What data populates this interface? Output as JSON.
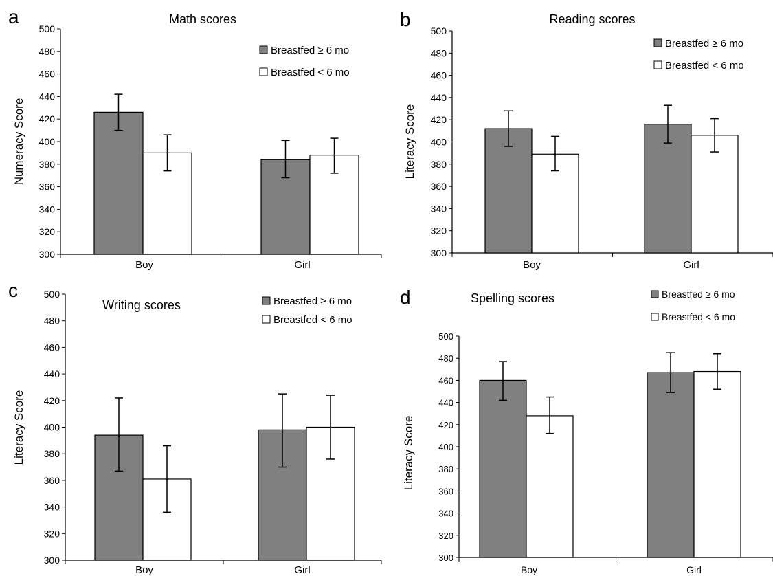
{
  "chart_data": [
    {
      "panel_letter": "a",
      "type": "bar",
      "title": "Math scores",
      "ylabel": "Numeracy Score",
      "xlabel": "",
      "categories": [
        "Boy",
        "Girl"
      ],
      "ylim": [
        300,
        500
      ],
      "yticks": [
        "300",
        "320",
        "340",
        "360",
        "380",
        "400",
        "420",
        "440",
        "460",
        "480",
        "500"
      ],
      "grid": false,
      "legend_position": "top-right",
      "series": [
        {
          "name": "Breastfed ≥ 6 mo",
          "color": "#808080",
          "values": [
            426,
            384
          ],
          "err_low": [
            410,
            368
          ],
          "err_high": [
            442,
            401
          ]
        },
        {
          "name": "Breastfed < 6 mo",
          "color": "#ffffff",
          "values": [
            390,
            388
          ],
          "err_low": [
            374,
            372
          ],
          "err_high": [
            406,
            403
          ]
        }
      ]
    },
    {
      "panel_letter": "b",
      "type": "bar",
      "title": "Reading scores",
      "ylabel": "Literacy Score",
      "xlabel": "",
      "categories": [
        "Boy",
        "Girl"
      ],
      "ylim": [
        300,
        500
      ],
      "yticks": [
        "300",
        "320",
        "340",
        "360",
        "380",
        "400",
        "420",
        "440",
        "460",
        "480",
        "500"
      ],
      "grid": false,
      "legend_position": "top-right",
      "series": [
        {
          "name": "Breastfed ≥ 6 mo",
          "color": "#808080",
          "values": [
            412,
            416
          ],
          "err_low": [
            396,
            399
          ],
          "err_high": [
            428,
            433
          ]
        },
        {
          "name": "Breastfed < 6 mo",
          "color": "#ffffff",
          "values": [
            389,
            406
          ],
          "err_low": [
            374,
            391
          ],
          "err_high": [
            405,
            421
          ]
        }
      ]
    },
    {
      "panel_letter": "c",
      "type": "bar",
      "title": "Writing scores",
      "ylabel": "Literacy Score",
      "xlabel": "",
      "categories": [
        "Boy",
        "Girl"
      ],
      "ylim": [
        300,
        500
      ],
      "yticks": [
        "300",
        "320",
        "340",
        "360",
        "380",
        "400",
        "420",
        "440",
        "460",
        "480",
        "500"
      ],
      "grid": false,
      "legend_position": "top-right",
      "series": [
        {
          "name": "Breastfed ≥ 6 mo",
          "color": "#808080",
          "values": [
            394,
            398
          ],
          "err_low": [
            367,
            370
          ],
          "err_high": [
            422,
            425
          ]
        },
        {
          "name": "Breastfed < 6 mo",
          "color": "#ffffff",
          "values": [
            361,
            400
          ],
          "err_low": [
            336,
            376
          ],
          "err_high": [
            386,
            424
          ]
        }
      ]
    },
    {
      "panel_letter": "d",
      "type": "bar",
      "title": "Spelling scores",
      "ylabel": "Literacy Score",
      "xlabel": "",
      "categories": [
        "Boy",
        "Girl"
      ],
      "ylim": [
        300,
        500
      ],
      "yticks": [
        "300",
        "320",
        "340",
        "360",
        "380",
        "400",
        "420",
        "440",
        "460",
        "480",
        "500"
      ],
      "grid": false,
      "legend_position": "top-right",
      "series": [
        {
          "name": "Breastfed ≥ 6 mo",
          "color": "#808080",
          "values": [
            460,
            467
          ],
          "err_low": [
            442,
            449
          ],
          "err_high": [
            477,
            485
          ]
        },
        {
          "name": "Breastfed < 6 mo",
          "color": "#ffffff",
          "values": [
            428,
            468
          ],
          "err_low": [
            412,
            452
          ],
          "err_high": [
            445,
            484
          ]
        }
      ]
    }
  ]
}
